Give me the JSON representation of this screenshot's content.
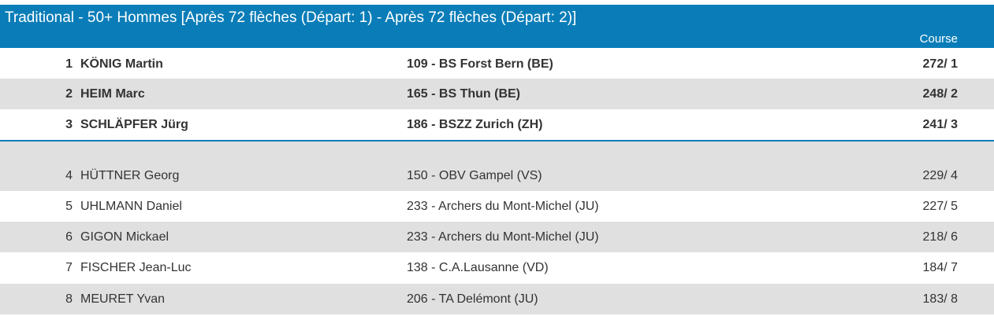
{
  "header": {
    "title": "Traditional - 50+ Hommes [Après 72 flèches (Départ: 1) - Après 72 flèches (Départ: 2)]",
    "column": "Course"
  },
  "table": {
    "rows": [
      [
        1,
        "KÖNIG Martin",
        "109 - BS Forst Bern (BE)",
        "272/ 1"
      ],
      [
        2,
        "HEIM Marc",
        "165 - BS Thun (BE)",
        "248/ 2"
      ],
      [
        3,
        "SCHLÄPFER Jürg",
        "186 - BSZZ Zurich (ZH)",
        "241/ 3"
      ],
      [
        4,
        "HÜTTNER Georg",
        "150 - OBV Gampel (VS)",
        "229/ 4"
      ],
      [
        5,
        "UHLMANN Daniel",
        "233 - Archers du Mont-Michel (JU)",
        "227/ 5"
      ],
      [
        6,
        "GIGON Mickael",
        "233 - Archers du Mont-Michel (JU)",
        "218/ 6"
      ],
      [
        7,
        "FISCHER Jean-Luc",
        "138 - C.A.Lausanne (VD)",
        "184/ 7"
      ],
      [
        8,
        "MEURET Yvan",
        "206 - TA Delémont (JU)",
        "183/ 8"
      ]
    ]
  }
}
